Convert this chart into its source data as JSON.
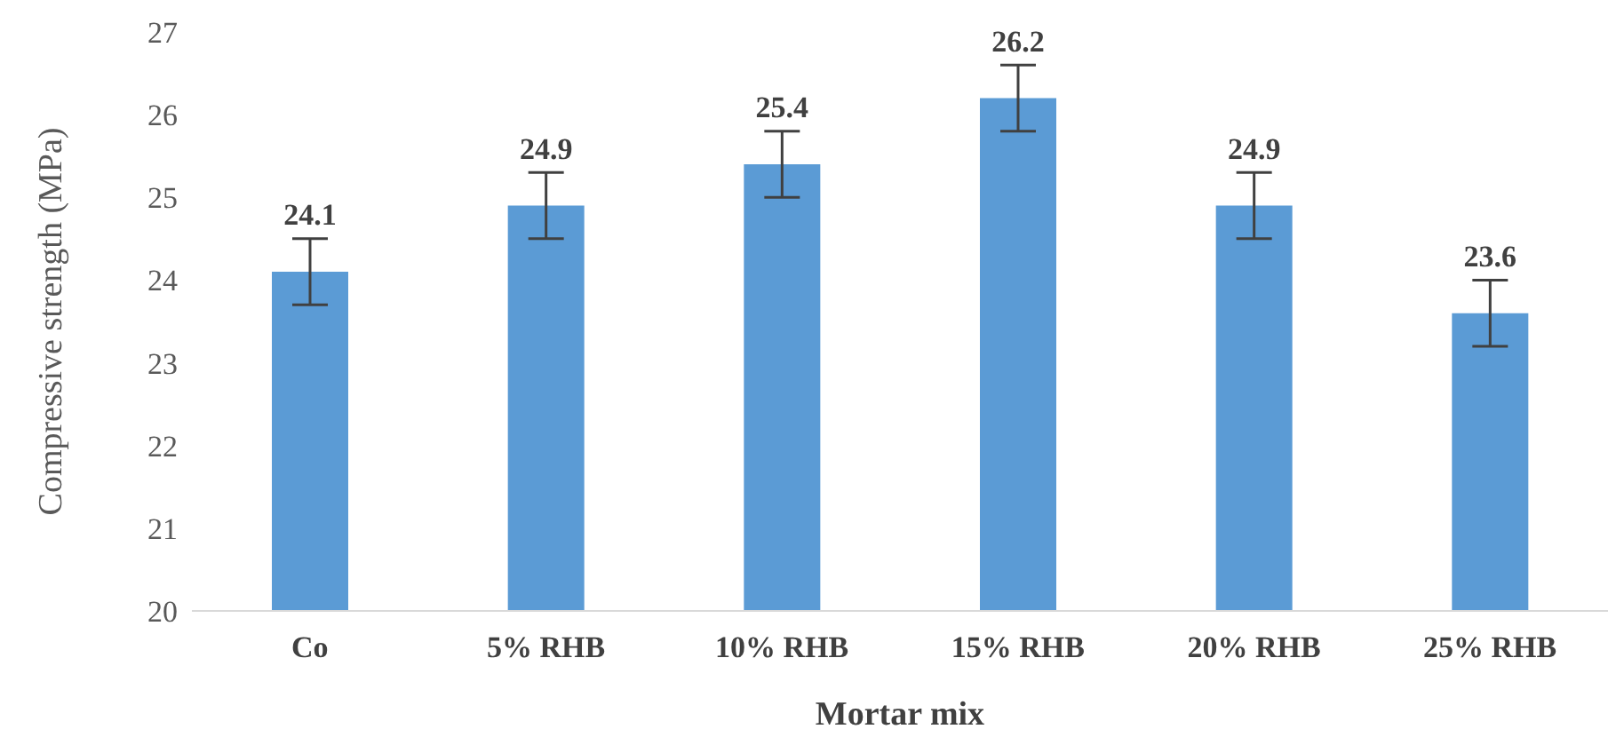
{
  "chart_data": {
    "type": "bar",
    "xlabel": "Mortar mix",
    "ylabel": "Compressive strength (MPa)",
    "categories": [
      "Co",
      "5% RHB",
      "10% RHB",
      "15% RHB",
      "20% RHB",
      "25% RHB"
    ],
    "values": [
      24.1,
      24.9,
      25.4,
      26.2,
      24.9,
      23.6
    ],
    "errors": [
      0.4,
      0.4,
      0.4,
      0.4,
      0.4,
      0.4
    ],
    "color": "#5b9bd5",
    "ylim": [
      20,
      27
    ],
    "yticks": [
      20,
      21,
      22,
      23,
      24,
      25,
      26,
      27
    ],
    "data_labels": true,
    "grid": false,
    "legend": false
  }
}
